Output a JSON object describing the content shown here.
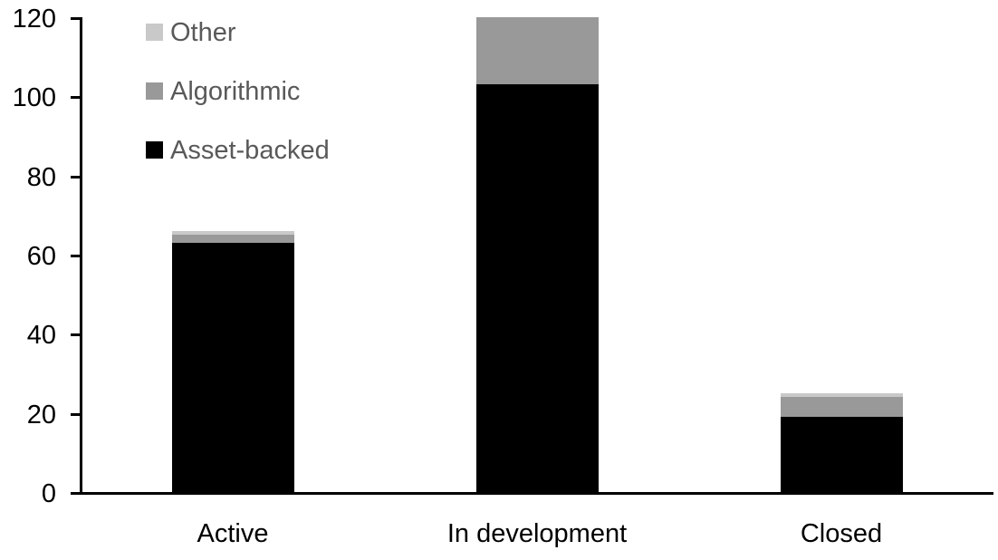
{
  "chart_data": {
    "type": "bar",
    "stacked": true,
    "title": "",
    "xlabel": "",
    "ylabel": "",
    "categories": [
      "Active",
      "In development",
      "Closed"
    ],
    "series": [
      {
        "name": "Asset-backed",
        "color": "#000000",
        "values": [
          63,
          103,
          19
        ]
      },
      {
        "name": "Algorithmic",
        "color": "#999999",
        "values": [
          2,
          17,
          5
        ]
      },
      {
        "name": "Other",
        "color": "#c9c9c9",
        "values": [
          1,
          0,
          1
        ]
      }
    ],
    "ylim": [
      0,
      120
    ],
    "yticks": [
      0,
      20,
      40,
      60,
      80,
      100,
      120
    ],
    "grid": false,
    "axis_color": "#000000",
    "legend": {
      "position": "top-left",
      "entries": [
        "Other",
        "Algorithmic",
        "Asset-backed"
      ],
      "text_color": "#595959"
    }
  }
}
